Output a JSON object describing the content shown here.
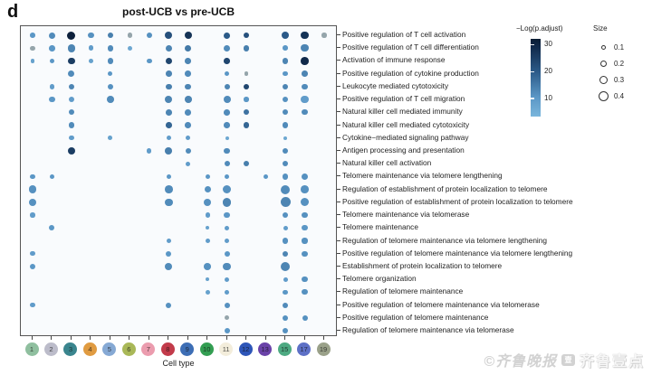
{
  "panel_label": "d",
  "title": "post-UCB vs pre-UCB",
  "xlabel": "Cell type",
  "watermark": {
    "left_text": "©齐鲁晚报",
    "logo": "壹",
    "right_text": "齐鲁壹点"
  },
  "legend": {
    "color_title": "−Log(p.adjust)",
    "color_ticks": [
      30,
      20,
      10
    ],
    "size_title": "Size",
    "size_ticks": [
      0.1,
      0.2,
      0.3,
      0.4
    ]
  },
  "chart_data": {
    "type": "scatter",
    "subtype": "dotplot-enrichment",
    "title": "post-UCB vs pre-UCB",
    "xlabel": "Cell type",
    "x_categories": [
      "1",
      "2",
      "3",
      "4",
      "5",
      "6",
      "7",
      "8",
      "9",
      "10",
      "11",
      "12",
      "13",
      "15",
      "17",
      "19"
    ],
    "cell_type_colors": [
      "#8fbf9f",
      "#bcbcca",
      "#3a858e",
      "#e09b41",
      "#86a9d4",
      "#a9b858",
      "#eb9cae",
      "#c23b4a",
      "#3d6eb5",
      "#339e52",
      "#f3eddb",
      "#2d55b8",
      "#6a42a8",
      "#4daa82",
      "#5d70c6",
      "#9aa189"
    ],
    "y_categories": [
      "Positive regulation of T cell activation",
      "Positive regulation of T cell differentiation",
      "Activation of immune response",
      "Positive regulation of cytokine production",
      "Leukocyte mediated cytotoxicity",
      "Positive regulation of T cell migration",
      "Natural killer cell mediated immunity",
      "Natural killer cell mediated cytotoxicity",
      "Cytokine−mediated signaling pathway",
      "Antigen processing and presentation",
      "Natural killer cell activation",
      "Telomere maintenance via telomere lengthening",
      "Regulation of establishment of protein localization to telomere",
      "Positive regulation of establishment of protein localization to telomere",
      "Telomere maintenance via telomerase",
      "Telomere maintenance",
      "Regulation of telomere maintenance via telomere lengthening",
      "Positive regulation of telomere maintenance via telomere lengthening",
      "Establishment of protein localization to telomere",
      "Telomere organization",
      "Regulation of telomere maintenance",
      "Positive regulation of telomere maintenance via telomerase",
      "Positive regulation of telomere maintenance",
      "Regulation of telomere maintenance via telomerase"
    ],
    "color_scale": {
      "title": "−Log(p.adjust)",
      "ticks": [
        30,
        20,
        10
      ],
      "range": [
        3,
        33
      ],
      "stops": [
        [
          3,
          "#84bde0"
        ],
        [
          10,
          "#5b97c6"
        ],
        [
          20,
          "#2b5a88"
        ],
        [
          30,
          "#10294a"
        ],
        [
          33,
          "#0a1c33"
        ]
      ],
      "na_color": "#95a5ab"
    },
    "size_scale": {
      "title": "Size",
      "ticks": [
        0.1,
        0.2,
        0.3,
        0.4
      ]
    },
    "points_format": [
      "row_index_0based",
      "col_position_1based",
      "size",
      "neg_log_p_adjust_or_null"
    ],
    "points": [
      [
        0,
        1,
        0.13,
        10
      ],
      [
        0,
        2,
        0.2,
        12
      ],
      [
        0,
        3,
        0.3,
        32
      ],
      [
        0,
        4,
        0.18,
        11
      ],
      [
        0,
        5,
        0.18,
        14
      ],
      [
        0,
        6,
        0.11,
        null
      ],
      [
        0,
        7,
        0.18,
        11
      ],
      [
        0,
        8,
        0.26,
        22
      ],
      [
        0,
        9,
        0.26,
        28
      ],
      [
        0,
        11,
        0.2,
        20
      ],
      [
        0,
        12,
        0.18,
        22
      ],
      [
        0,
        14,
        0.26,
        20
      ],
      [
        0,
        15,
        0.28,
        28
      ],
      [
        0,
        16,
        0.11,
        null
      ],
      [
        1,
        1,
        0.11,
        null
      ],
      [
        1,
        2,
        0.18,
        10
      ],
      [
        1,
        3,
        0.28,
        13
      ],
      [
        1,
        4,
        0.13,
        9
      ],
      [
        1,
        5,
        0.18,
        12
      ],
      [
        1,
        6,
        0.11,
        7
      ],
      [
        1,
        8,
        0.2,
        13
      ],
      [
        1,
        9,
        0.2,
        15
      ],
      [
        1,
        11,
        0.2,
        12
      ],
      [
        1,
        12,
        0.18,
        14
      ],
      [
        1,
        14,
        0.13,
        10
      ],
      [
        1,
        15,
        0.26,
        13
      ],
      [
        2,
        1,
        0.07,
        8
      ],
      [
        2,
        2,
        0.13,
        10
      ],
      [
        2,
        3,
        0.24,
        26
      ],
      [
        2,
        4,
        0.09,
        8
      ],
      [
        2,
        5,
        0.18,
        12
      ],
      [
        2,
        7,
        0.13,
        10
      ],
      [
        2,
        8,
        0.22,
        24
      ],
      [
        2,
        9,
        0.18,
        13
      ],
      [
        2,
        11,
        0.18,
        24
      ],
      [
        2,
        14,
        0.18,
        13
      ],
      [
        2,
        15,
        0.28,
        30
      ],
      [
        3,
        3,
        0.2,
        12
      ],
      [
        3,
        5,
        0.11,
        10
      ],
      [
        3,
        8,
        0.18,
        13
      ],
      [
        3,
        9,
        0.18,
        12
      ],
      [
        3,
        11,
        0.12,
        10
      ],
      [
        3,
        12,
        0.07,
        null
      ],
      [
        3,
        14,
        0.12,
        10
      ],
      [
        3,
        15,
        0.18,
        13
      ],
      [
        4,
        2,
        0.12,
        9
      ],
      [
        4,
        3,
        0.18,
        13
      ],
      [
        4,
        5,
        0.15,
        11
      ],
      [
        4,
        8,
        0.18,
        14
      ],
      [
        4,
        9,
        0.18,
        13
      ],
      [
        4,
        11,
        0.16,
        13
      ],
      [
        4,
        12,
        0.16,
        24
      ],
      [
        4,
        14,
        0.16,
        13
      ],
      [
        4,
        15,
        0.16,
        12
      ],
      [
        5,
        2,
        0.16,
        10
      ],
      [
        5,
        3,
        0.18,
        9
      ],
      [
        5,
        5,
        0.24,
        12
      ],
      [
        5,
        8,
        0.26,
        13
      ],
      [
        5,
        9,
        0.24,
        13
      ],
      [
        5,
        11,
        0.26,
        12
      ],
      [
        5,
        12,
        0.12,
        10
      ],
      [
        5,
        14,
        0.16,
        11
      ],
      [
        5,
        15,
        0.26,
        9
      ],
      [
        6,
        3,
        0.16,
        12
      ],
      [
        6,
        8,
        0.18,
        13
      ],
      [
        6,
        9,
        0.18,
        12
      ],
      [
        6,
        11,
        0.18,
        12
      ],
      [
        6,
        12,
        0.16,
        16
      ],
      [
        6,
        14,
        0.16,
        12
      ],
      [
        6,
        15,
        0.16,
        12
      ],
      [
        7,
        3,
        0.16,
        12
      ],
      [
        7,
        8,
        0.18,
        18
      ],
      [
        7,
        9,
        0.18,
        12
      ],
      [
        7,
        11,
        0.18,
        12
      ],
      [
        7,
        12,
        0.16,
        18
      ],
      [
        7,
        14,
        0.16,
        12
      ],
      [
        8,
        3,
        0.11,
        9
      ],
      [
        8,
        5,
        0.09,
        8
      ],
      [
        8,
        8,
        0.11,
        9
      ],
      [
        8,
        9,
        0.11,
        9
      ],
      [
        8,
        11,
        0.07,
        7
      ],
      [
        8,
        14,
        0.07,
        7
      ],
      [
        9,
        3,
        0.26,
        26
      ],
      [
        9,
        7,
        0.11,
        9
      ],
      [
        9,
        8,
        0.24,
        14
      ],
      [
        9,
        9,
        0.16,
        12
      ],
      [
        9,
        11,
        0.18,
        12
      ],
      [
        9,
        14,
        0.16,
        12
      ],
      [
        10,
        9,
        0.11,
        9
      ],
      [
        10,
        11,
        0.16,
        12
      ],
      [
        10,
        12,
        0.16,
        14
      ],
      [
        10,
        14,
        0.16,
        12
      ],
      [
        11,
        1,
        0.12,
        10
      ],
      [
        11,
        2,
        0.12,
        10
      ],
      [
        11,
        8,
        0.12,
        10
      ],
      [
        11,
        10,
        0.12,
        10
      ],
      [
        11,
        11,
        0.12,
        10
      ],
      [
        11,
        13,
        0.12,
        10
      ],
      [
        11,
        14,
        0.16,
        11
      ],
      [
        11,
        15,
        0.24,
        11
      ],
      [
        12,
        1,
        0.28,
        11
      ],
      [
        12,
        8,
        0.28,
        12
      ],
      [
        12,
        10,
        0.22,
        11
      ],
      [
        12,
        11,
        0.32,
        11
      ],
      [
        12,
        14,
        0.36,
        12
      ],
      [
        12,
        15,
        0.28,
        11
      ],
      [
        13,
        1,
        0.28,
        11
      ],
      [
        13,
        8,
        0.28,
        12
      ],
      [
        13,
        10,
        0.26,
        11
      ],
      [
        13,
        11,
        0.32,
        13
      ],
      [
        13,
        14,
        0.4,
        13
      ],
      [
        13,
        15,
        0.3,
        11
      ],
      [
        14,
        1,
        0.11,
        9
      ],
      [
        14,
        10,
        0.12,
        9
      ],
      [
        14,
        11,
        0.18,
        10
      ],
      [
        14,
        14,
        0.18,
        11
      ],
      [
        14,
        15,
        0.18,
        11
      ],
      [
        15,
        2,
        0.15,
        10
      ],
      [
        15,
        10,
        0.07,
        8
      ],
      [
        15,
        11,
        0.11,
        9
      ],
      [
        15,
        14,
        0.11,
        9
      ],
      [
        15,
        15,
        0.16,
        10
      ],
      [
        16,
        8,
        0.11,
        9
      ],
      [
        16,
        10,
        0.11,
        9
      ],
      [
        16,
        11,
        0.12,
        9
      ],
      [
        16,
        14,
        0.16,
        11
      ],
      [
        16,
        15,
        0.16,
        11
      ],
      [
        17,
        1,
        0.11,
        9
      ],
      [
        17,
        8,
        0.15,
        10
      ],
      [
        17,
        11,
        0.16,
        10
      ],
      [
        17,
        14,
        0.16,
        13
      ],
      [
        17,
        15,
        0.16,
        11
      ],
      [
        18,
        1,
        0.16,
        10
      ],
      [
        18,
        8,
        0.26,
        12
      ],
      [
        18,
        10,
        0.24,
        11
      ],
      [
        18,
        11,
        0.28,
        12
      ],
      [
        18,
        14,
        0.38,
        13
      ],
      [
        19,
        10,
        0.07,
        8
      ],
      [
        19,
        11,
        0.11,
        9
      ],
      [
        19,
        14,
        0.09,
        9
      ],
      [
        19,
        15,
        0.16,
        11
      ],
      [
        20,
        10,
        0.09,
        8
      ],
      [
        20,
        11,
        0.09,
        9
      ],
      [
        20,
        14,
        0.13,
        10
      ],
      [
        20,
        15,
        0.16,
        11
      ],
      [
        21,
        1,
        0.11,
        9
      ],
      [
        21,
        8,
        0.16,
        11
      ],
      [
        21,
        11,
        0.16,
        11
      ],
      [
        21,
        14,
        0.16,
        12
      ],
      [
        22,
        11,
        0.11,
        null
      ],
      [
        22,
        14,
        0.16,
        11
      ],
      [
        22,
        15,
        0.15,
        11
      ],
      [
        23,
        11,
        0.15,
        10
      ],
      [
        23,
        14,
        0.16,
        11
      ]
    ]
  }
}
